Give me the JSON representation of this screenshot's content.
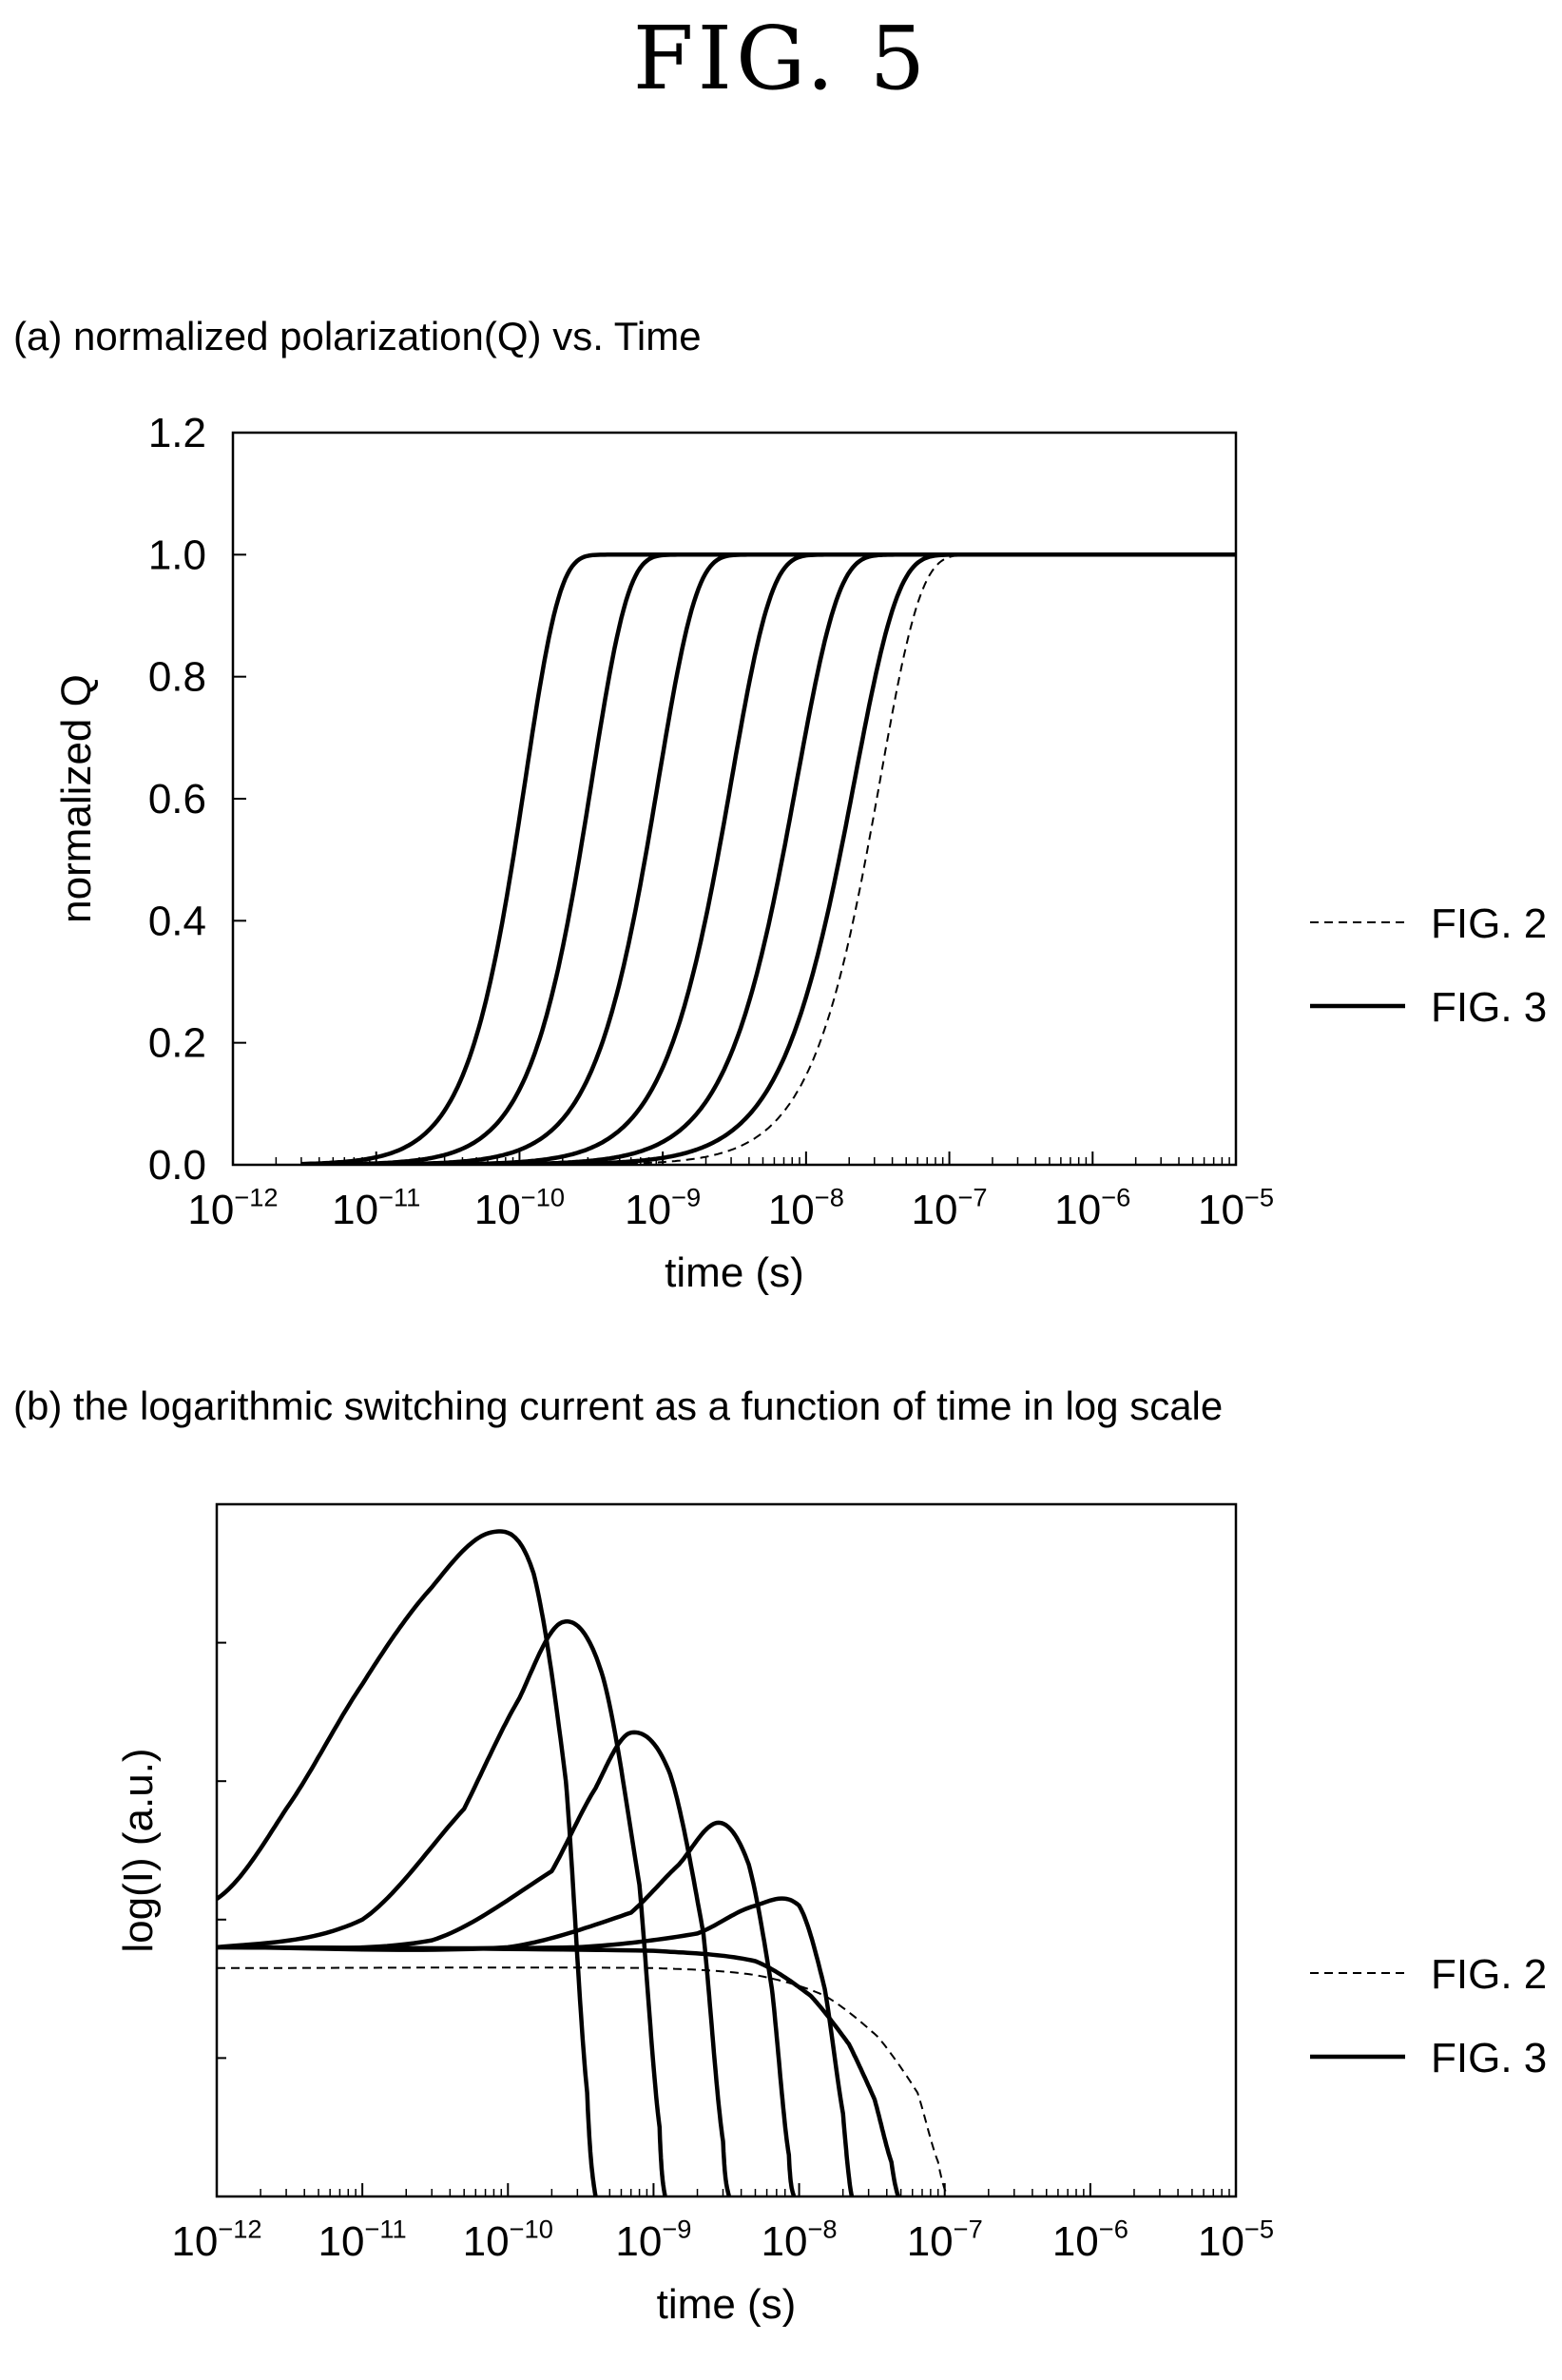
{
  "figure_title": "FIG. 5",
  "chart_data": [
    {
      "type": "line",
      "panel_label": "(a) normalized polarization(Q) vs. Time",
      "xlabel": "time (s)",
      "ylabel": "normalized Q",
      "x_scale": "log",
      "xlim": [
        1e-12,
        1e-05
      ],
      "ylim": [
        0,
        1.2
      ],
      "x_ticks": [
        "10^-12",
        "10^-11",
        "10^-10",
        "10^-9",
        "10^-8",
        "10^-7",
        "10^-6",
        "10^-5"
      ],
      "y_ticks": [
        "0.0",
        "0.2",
        "0.4",
        "0.6",
        "0.8",
        "1.0",
        "1.2"
      ],
      "legend": [
        {
          "label": "FIG. 2",
          "style": "dashed"
        },
        {
          "label": "FIG. 3",
          "style": "solid"
        }
      ],
      "legend_position": "right",
      "series": [
        {
          "style": "solid",
          "t50": 9e-11,
          "width": 0.38,
          "x_start": 3e-12
        },
        {
          "style": "solid",
          "t50": 2.6e-10,
          "width": 0.4,
          "x_start": 3e-12
        },
        {
          "style": "solid",
          "t50": 7.5e-10,
          "width": 0.42,
          "x_start": 3e-12
        },
        {
          "style": "solid",
          "t50": 2.4e-09,
          "width": 0.44,
          "x_start": 3e-12
        },
        {
          "style": "solid",
          "t50": 6.8e-09,
          "width": 0.46,
          "x_start": 3e-12
        },
        {
          "style": "solid",
          "t50": 1.7e-08,
          "width": 0.48,
          "x_start": 3e-12
        },
        {
          "style": "dashed",
          "t50": 2.6e-08,
          "width": 0.45,
          "x_start": 3e-12
        }
      ]
    },
    {
      "type": "line",
      "panel_label": "(b) the logarithmic switching current as a function of time in log scale",
      "xlabel": "time (s)",
      "ylabel": "log(I) (a.u.)",
      "x_scale": "log",
      "xlim": [
        1e-12,
        1e-05
      ],
      "ylim": [
        0,
        1
      ],
      "x_ticks": [
        "10^-12",
        "10^-11",
        "10^-10",
        "10^-9",
        "10^-8",
        "10^-7",
        "10^-6",
        "10^-5"
      ],
      "legend": [
        {
          "label": "FIG. 2",
          "style": "dashed"
        },
        {
          "label": "FIG. 3",
          "style": "solid"
        }
      ],
      "legend_position": "right",
      "series": [
        {
          "style": "solid",
          "x": [
            1e-12,
            3e-12,
            1e-11,
            3e-11,
            8e-11,
            1.5e-10,
            2.5e-10,
            3.5e-10,
            4e-10
          ],
          "y": [
            0.43,
            0.56,
            0.74,
            0.88,
            0.96,
            0.9,
            0.6,
            0.15,
            0.0
          ]
        },
        {
          "style": "solid",
          "x": [
            1e-12,
            1e-11,
            5e-11,
            1.2e-10,
            2.4e-10,
            4.5e-10,
            8e-10,
            1.1e-09,
            1.2e-09
          ],
          "y": [
            0.36,
            0.4,
            0.56,
            0.72,
            0.83,
            0.75,
            0.45,
            0.1,
            0.0
          ]
        },
        {
          "style": "solid",
          "x": [
            1e-12,
            3e-11,
            2e-10,
            4e-10,
            7e-10,
            1.3e-09,
            2.2e-09,
            3e-09,
            3.3e-09
          ],
          "y": [
            0.36,
            0.37,
            0.47,
            0.59,
            0.67,
            0.61,
            0.38,
            0.08,
            0.0
          ]
        },
        {
          "style": "solid",
          "x": [
            1e-12,
            1e-10,
            7e-10,
            1.5e-09,
            2.8e-09,
            4.5e-09,
            6.5e-09,
            8.5e-09,
            9.2e-09
          ],
          "y": [
            0.36,
            0.36,
            0.41,
            0.48,
            0.54,
            0.48,
            0.3,
            0.06,
            0.0
          ]
        },
        {
          "style": "solid",
          "x": [
            1e-12,
            3e-10,
            2e-09,
            5e-09,
            1e-08,
            1.5e-08,
            2e-08,
            2.3e-08
          ],
          "y": [
            0.36,
            0.36,
            0.38,
            0.42,
            0.42,
            0.3,
            0.12,
            0.0
          ]
        },
        {
          "style": "solid",
          "x": [
            1e-12,
            1e-09,
            5e-09,
            1.2e-08,
            2.2e-08,
            3.3e-08,
            4.3e-08,
            4.8e-08
          ],
          "y": [
            0.36,
            0.355,
            0.34,
            0.29,
            0.22,
            0.14,
            0.05,
            0.0
          ]
        },
        {
          "style": "dashed",
          "x": [
            1e-12,
            1e-09,
            5e-09,
            1.5e-08,
            3.5e-08,
            6.5e-08,
            9e-08,
            1.05e-07
          ],
          "y": [
            0.33,
            0.33,
            0.32,
            0.29,
            0.23,
            0.15,
            0.05,
            0.0
          ]
        }
      ]
    }
  ]
}
